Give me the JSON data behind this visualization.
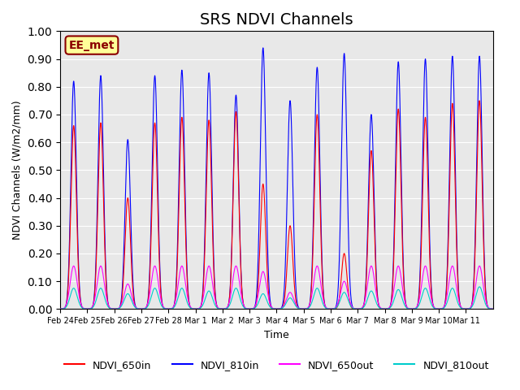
{
  "title": "SRS NDVI Channels",
  "xlabel": "Time",
  "ylabel": "NDVI Channels (W/m2/mm)",
  "ylim": [
    0.0,
    1.0
  ],
  "annotation_text": "EE_met",
  "annotation_color": "#8B0000",
  "annotation_bg": "#FFFF99",
  "bg_color": "#E8E8E8",
  "legend_labels": [
    "NDVI_650in",
    "NDVI_810in",
    "NDVI_650out",
    "NDVI_810out"
  ],
  "legend_colors": [
    "#FF0000",
    "#0000FF",
    "#FF00FF",
    "#00CCCC"
  ],
  "line_colors": {
    "NDVI_650in": "#FF0000",
    "NDVI_810in": "#0000FF",
    "NDVI_650out": "#FF00FF",
    "NDVI_810out": "#00CCCC"
  },
  "x_tick_labels": [
    "Feb 24",
    "Feb 25",
    "Feb 26",
    "Feb 27",
    "Feb 28",
    "Mar 1",
    "Mar 2",
    "Mar 3",
    "Mar 4",
    "Mar 5",
    "Mar 6",
    "Mar 7",
    "Mar 8",
    "Mar 9",
    "Mar 10",
    "Mar 11"
  ],
  "peaks_650in": [
    0.66,
    0.67,
    0.4,
    0.67,
    0.69,
    0.68,
    0.71,
    0.45,
    0.3,
    0.7,
    0.2,
    0.57,
    0.72,
    0.69,
    0.74,
    0.75
  ],
  "peaks_810in": [
    0.82,
    0.84,
    0.61,
    0.84,
    0.86,
    0.85,
    0.77,
    0.94,
    0.75,
    0.87,
    0.92,
    0.7,
    0.89,
    0.9,
    0.91,
    0.91
  ],
  "peaks_650out": [
    0.155,
    0.155,
    0.09,
    0.155,
    0.155,
    0.155,
    0.155,
    0.135,
    0.06,
    0.155,
    0.1,
    0.155,
    0.155,
    0.155,
    0.155,
    0.155
  ],
  "peaks_810out": [
    0.075,
    0.075,
    0.055,
    0.075,
    0.075,
    0.065,
    0.075,
    0.055,
    0.04,
    0.075,
    0.06,
    0.065,
    0.07,
    0.075,
    0.075,
    0.08
  ],
  "n_days": 16,
  "points_per_day": 200,
  "title_fontsize": 14
}
